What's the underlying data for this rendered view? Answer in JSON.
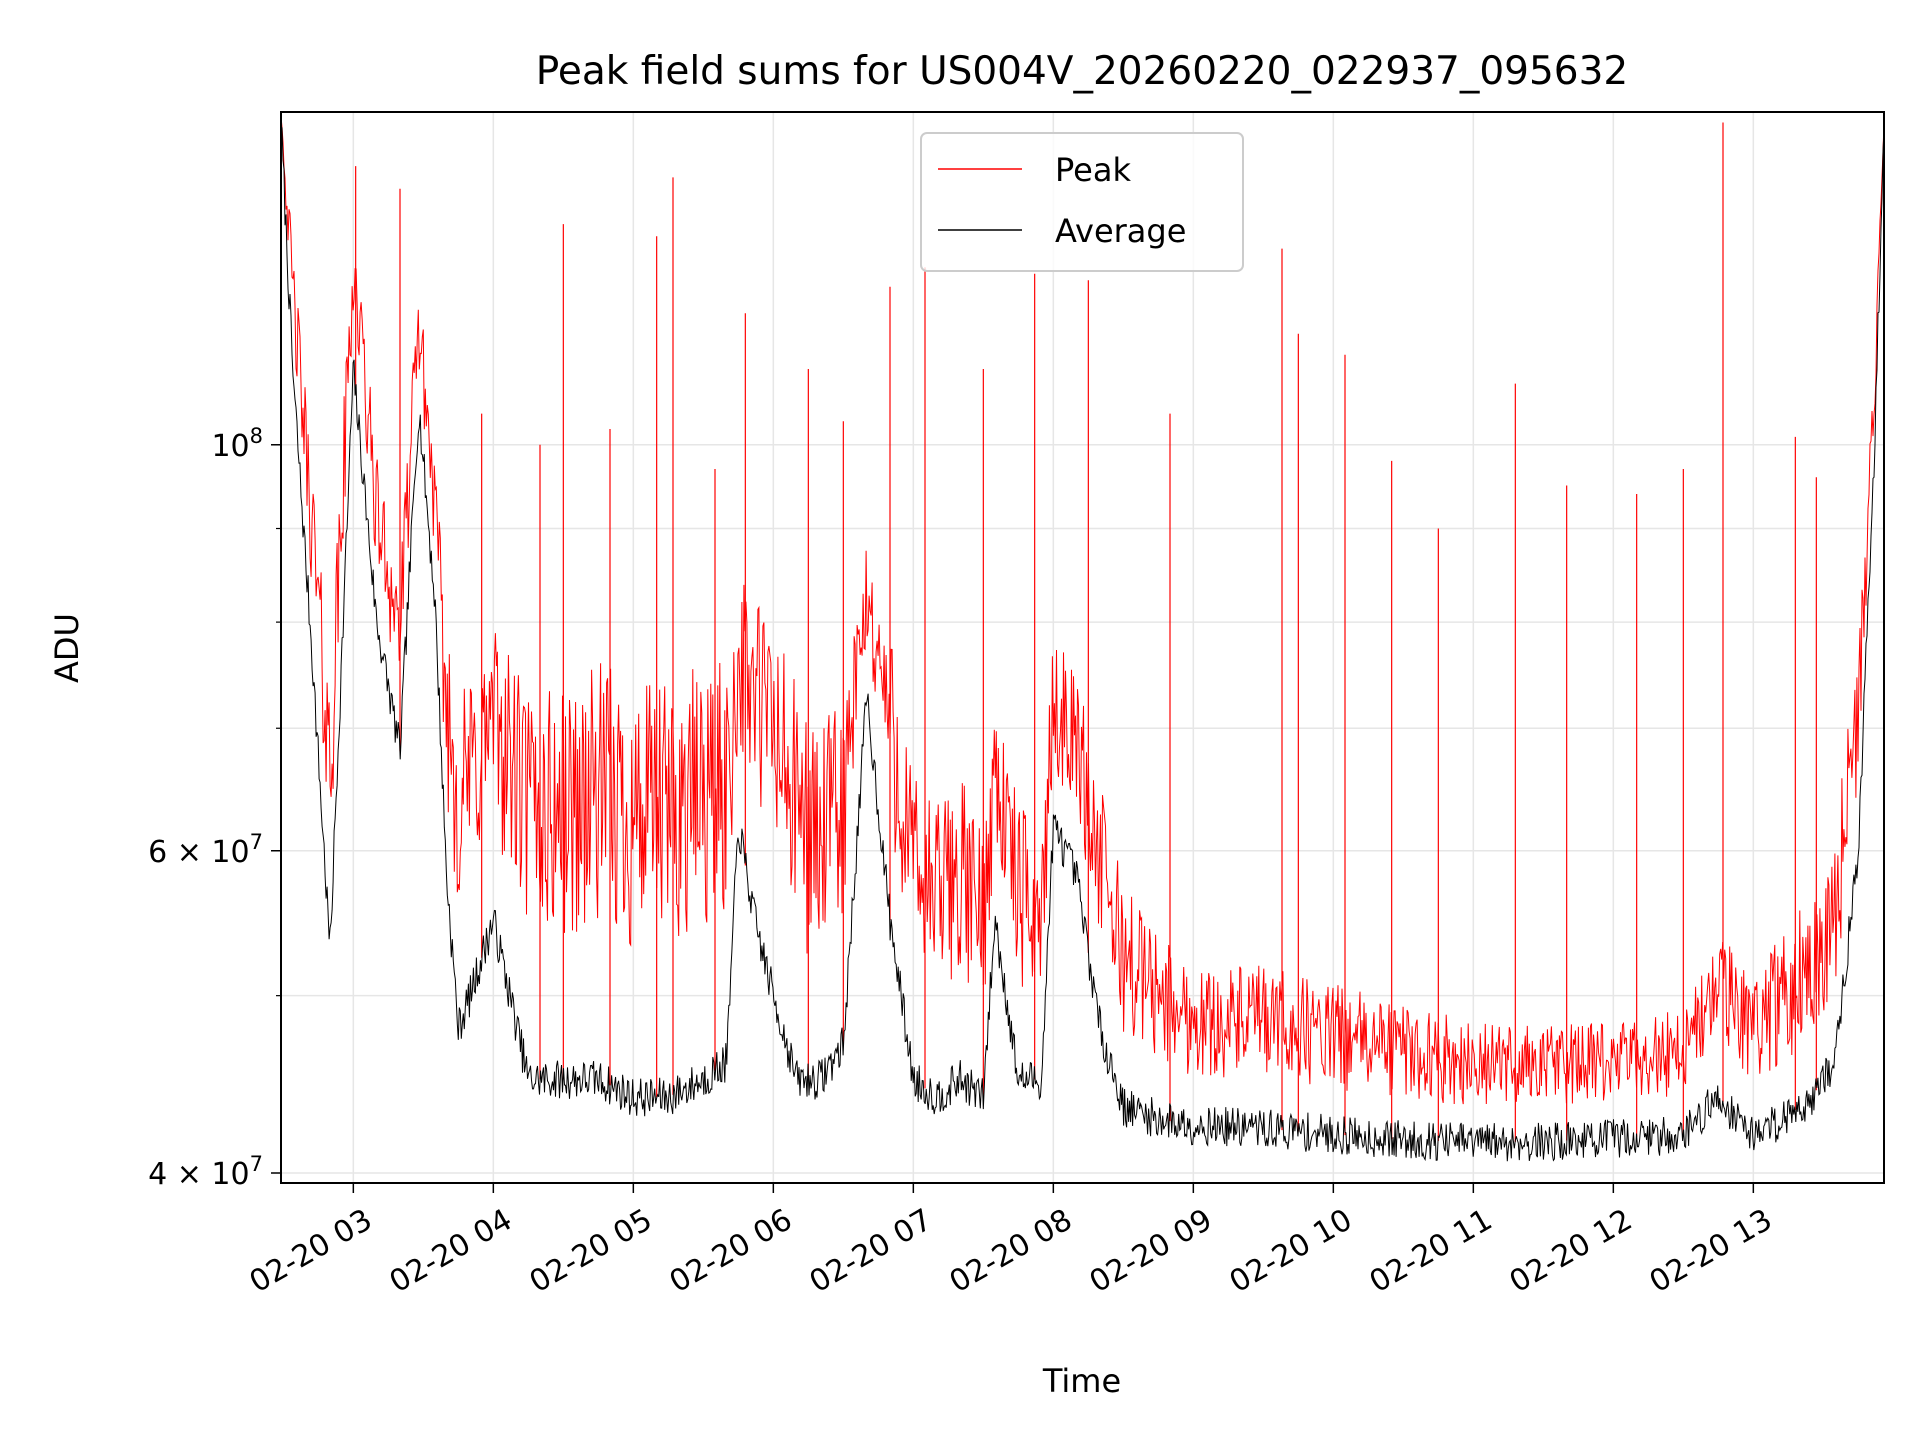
{
  "chart_data": {
    "type": "line",
    "title": "Peak field sums for US004V_20260220_022937_095632",
    "xlabel": "Time",
    "ylabel": "ADU",
    "yscale": "log",
    "xlim": [
      "2026-02-20 02:29",
      "2026-02-20 13:56"
    ],
    "ylim": [
      39500000,
      152000000
    ],
    "grid": true,
    "legend": "upper center",
    "x_ticks": [
      "02-20 03",
      "02-20 04",
      "02-20 05",
      "02-20 06",
      "02-20 07",
      "02-20 08",
      "02-20 09",
      "02-20 10",
      "02-20 11",
      "02-20 12",
      "02-20 13"
    ],
    "x_tick_times": [
      "2026-02-20 03:00",
      "2026-02-20 04:00",
      "2026-02-20 05:00",
      "2026-02-20 06:00",
      "2026-02-20 07:00",
      "2026-02-20 08:00",
      "2026-02-20 09:00",
      "2026-02-20 10:00",
      "2026-02-20 11:00",
      "2026-02-20 12:00",
      "2026-02-20 13:00"
    ],
    "y_ticks": [
      {
        "value": 100000000,
        "base": "10",
        "exp": "8"
      },
      {
        "value": 60000000,
        "base": "6 × 10",
        "exp": "7"
      },
      {
        "value": 40000000,
        "base": "4 × 10",
        "exp": "7"
      }
    ],
    "y_minor_ticks": [
      50000000,
      70000000,
      80000000,
      90000000
    ],
    "x": [
      "2026-02-20 02:29",
      "2026-02-20 02:34",
      "2026-02-20 02:42",
      "2026-02-20 02:50",
      "2026-02-20 03:00",
      "2026-02-20 03:10",
      "2026-02-20 03:20",
      "2026-02-20 03:28",
      "2026-02-20 03:35",
      "2026-02-20 03:40",
      "2026-02-20 03:45",
      "2026-02-20 03:50",
      "2026-02-20 04:00",
      "2026-02-20 04:15",
      "2026-02-20 04:30",
      "2026-02-20 04:45",
      "2026-02-20 05:00",
      "2026-02-20 05:15",
      "2026-02-20 05:30",
      "2026-02-20 05:40",
      "2026-02-20 05:45",
      "2026-02-20 05:52",
      "2026-02-20 06:00",
      "2026-02-20 06:10",
      "2026-02-20 06:20",
      "2026-02-20 06:30",
      "2026-02-20 06:40",
      "2026-02-20 06:50",
      "2026-02-20 07:00",
      "2026-02-20 07:10",
      "2026-02-20 07:20",
      "2026-02-20 07:30",
      "2026-02-20 07:35",
      "2026-02-20 07:45",
      "2026-02-20 07:55",
      "2026-02-20 08:00",
      "2026-02-20 08:10",
      "2026-02-20 08:20",
      "2026-02-20 08:30",
      "2026-02-20 08:45",
      "2026-02-20 09:00",
      "2026-02-20 09:30",
      "2026-02-20 10:00",
      "2026-02-20 10:30",
      "2026-02-20 11:00",
      "2026-02-20 11:30",
      "2026-02-20 12:00",
      "2026-02-20 12:30",
      "2026-02-20 12:45",
      "2026-02-20 13:00",
      "2026-02-20 13:15",
      "2026-02-20 13:25",
      "2026-02-20 13:35",
      "2026-02-20 13:45",
      "2026-02-20 13:52",
      "2026-02-20 13:56"
    ],
    "series": [
      {
        "name": "Average",
        "color": "#000000",
        "values": [
          150000000,
          110000000,
          78000000,
          53000000,
          110000000,
          80000000,
          68000000,
          105000000,
          82000000,
          58000000,
          48000000,
          50000000,
          55000000,
          45000000,
          45000000,
          45000000,
          44000000,
          44000000,
          45000000,
          46000000,
          62000000,
          55000000,
          50000000,
          45000000,
          45000000,
          47000000,
          73000000,
          55000000,
          45000000,
          44000000,
          45000000,
          44000000,
          55000000,
          45000000,
          45000000,
          62000000,
          58000000,
          48000000,
          43500000,
          42800000,
          42500000,
          42300000,
          42000000,
          41700000,
          41600000,
          41600000,
          41800000,
          42000000,
          44000000,
          42000000,
          43000000,
          44000000,
          46000000,
          60000000,
          100000000,
          150000000
        ]
      },
      {
        "name": "Peak",
        "color": "#ff0000",
        "values": [
          152000000,
          125000000,
          95000000,
          70000000,
          130000000,
          95000000,
          82000000,
          120000000,
          95000000,
          75000000,
          68000000,
          70000000,
          75000000,
          68000000,
          68000000,
          70000000,
          68000000,
          68000000,
          70000000,
          70000000,
          80000000,
          78000000,
          75000000,
          68000000,
          65000000,
          68000000,
          85000000,
          75000000,
          62000000,
          60000000,
          62000000,
          58000000,
          70000000,
          60000000,
          58000000,
          75000000,
          72000000,
          62000000,
          55000000,
          52000000,
          50000000,
          50000000,
          49000000,
          48000000,
          47000000,
          47000000,
          47000000,
          48000000,
          52000000,
          50000000,
          52000000,
          55000000,
          58000000,
          75000000,
          110000000,
          150000000
        ]
      }
    ],
    "spikes": [
      [
        "2026-02-20 03:01",
        142000000
      ],
      [
        "2026-02-20 03:20",
        138000000
      ],
      [
        "2026-02-20 04:30",
        132000000
      ],
      [
        "2026-02-20 05:10",
        130000000
      ],
      [
        "2026-02-20 05:17",
        140000000
      ],
      [
        "2026-02-20 05:48",
        118000000
      ],
      [
        "2026-02-20 06:50",
        122000000
      ],
      [
        "2026-02-20 07:05",
        125000000
      ],
      [
        "2026-02-20 07:52",
        124000000
      ],
      [
        "2026-02-20 08:15",
        123000000
      ],
      [
        "2026-02-20 09:38",
        128000000
      ],
      [
        "2026-02-20 11:18",
        108000000
      ],
      [
        "2026-02-20 12:47",
        150000000
      ],
      [
        "2026-02-20 03:55",
        104000000
      ],
      [
        "2026-02-20 04:20",
        100000000
      ],
      [
        "2026-02-20 04:50",
        102000000
      ],
      [
        "2026-02-20 06:15",
        110000000
      ],
      [
        "2026-02-20 07:30",
        110000000
      ],
      [
        "2026-02-20 08:50",
        104000000
      ],
      [
        "2026-02-20 09:45",
        115000000
      ],
      [
        "2026-02-20 10:05",
        112000000
      ],
      [
        "2026-02-20 10:25",
        98000000
      ],
      [
        "2026-02-20 11:40",
        95000000
      ],
      [
        "2026-02-20 12:30",
        97000000
      ],
      [
        "2026-02-20 13:18",
        101000000
      ],
      [
        "2026-02-20 13:27",
        96000000
      ],
      [
        "2026-02-20 06:30",
        103000000
      ],
      [
        "2026-02-20 05:35",
        97000000
      ],
      [
        "2026-02-20 12:10",
        94000000
      ],
      [
        "2026-02-20 10:45",
        90000000
      ]
    ]
  }
}
